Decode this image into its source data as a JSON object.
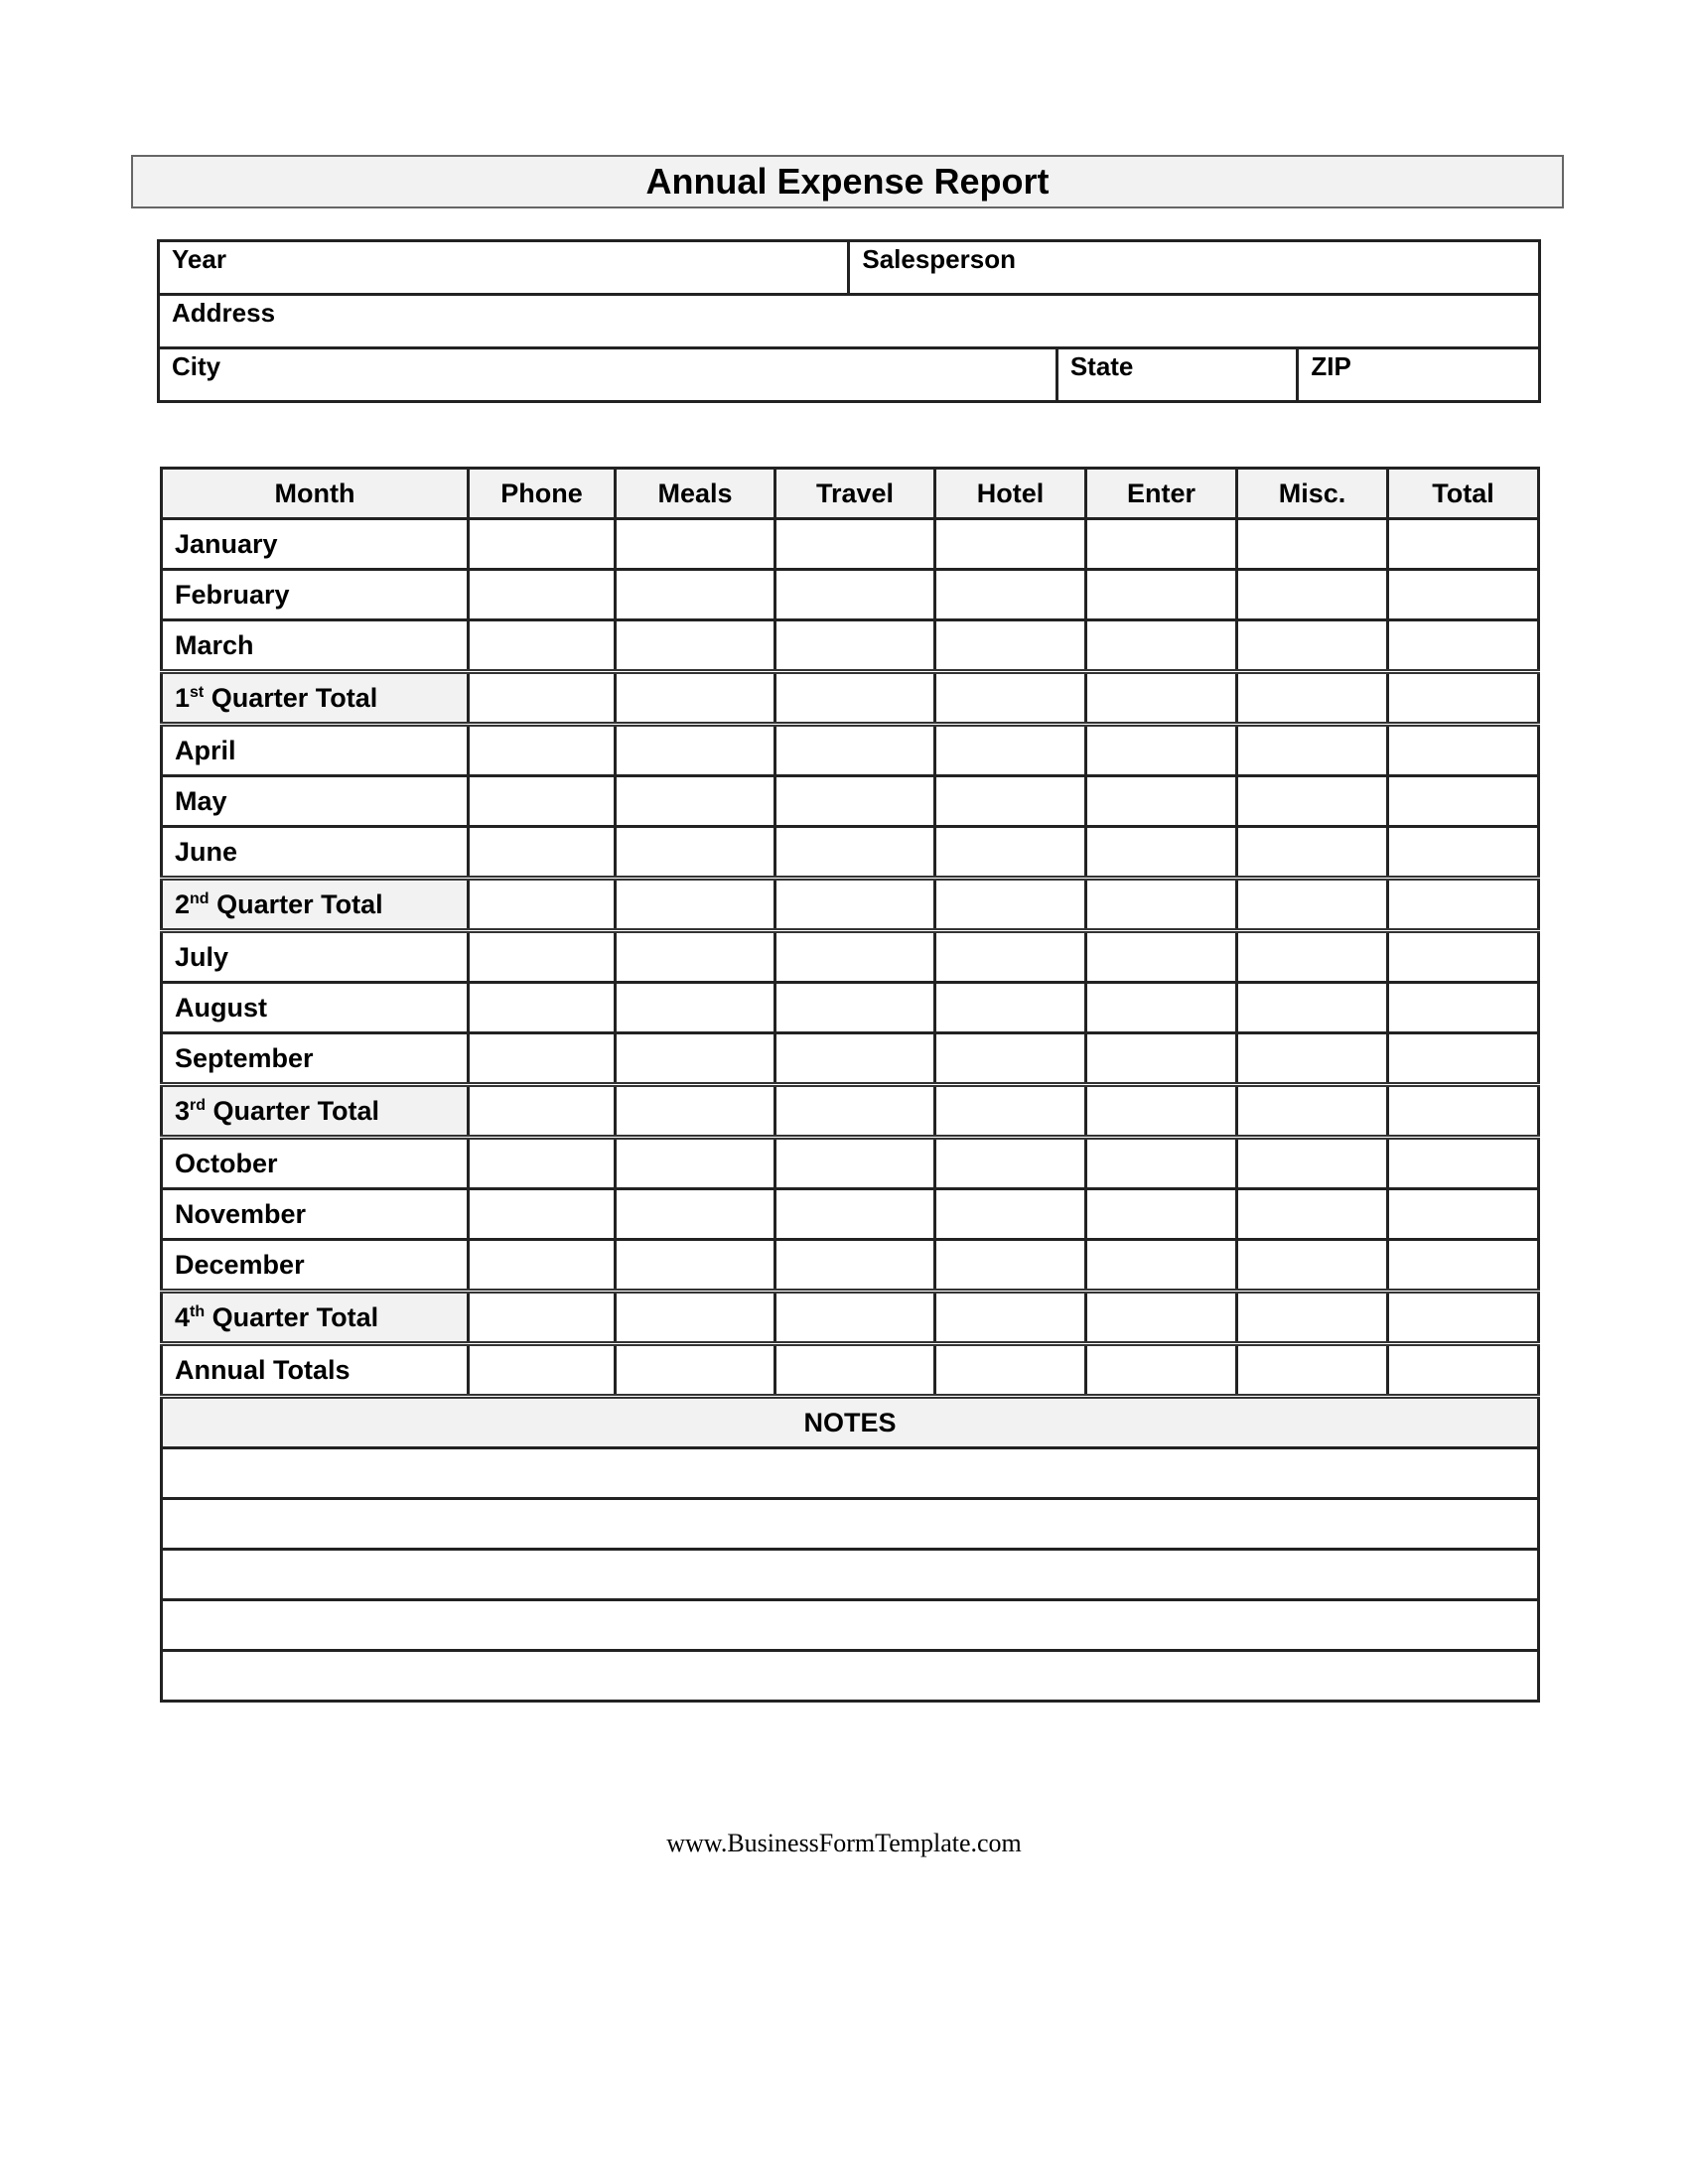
{
  "title": "Annual Expense Report",
  "info": {
    "year": "Year",
    "salesperson": "Salesperson",
    "address": "Address",
    "city": "City",
    "state": "State",
    "zip": "ZIP"
  },
  "columns": [
    "Month",
    "Phone",
    "Meals",
    "Travel",
    "Hotel",
    "Enter",
    "Misc.",
    "Total"
  ],
  "rows": [
    {
      "label": "January"
    },
    {
      "label": "February"
    },
    {
      "label": "March"
    },
    {
      "num": "1",
      "sup": "st",
      "label": " Quarter Total",
      "quarter": true
    },
    {
      "label": "April"
    },
    {
      "label": "May"
    },
    {
      "label": "June"
    },
    {
      "num": "2",
      "sup": "nd",
      "label": " Quarter Total",
      "quarter": true
    },
    {
      "label": "July"
    },
    {
      "label": "August"
    },
    {
      "label": "September"
    },
    {
      "num": "3",
      "sup": "rd",
      "label": " Quarter Total",
      "quarter": true
    },
    {
      "label": "October"
    },
    {
      "label": "November"
    },
    {
      "label": "December"
    },
    {
      "num": "4",
      "sup": "th",
      "label": " Quarter Total",
      "quarter": true
    },
    {
      "label": "Annual Totals",
      "annual": true
    }
  ],
  "notes": {
    "header": "NOTES",
    "line_count": 5
  },
  "footer": "www.BusinessFormTemplate.com"
}
